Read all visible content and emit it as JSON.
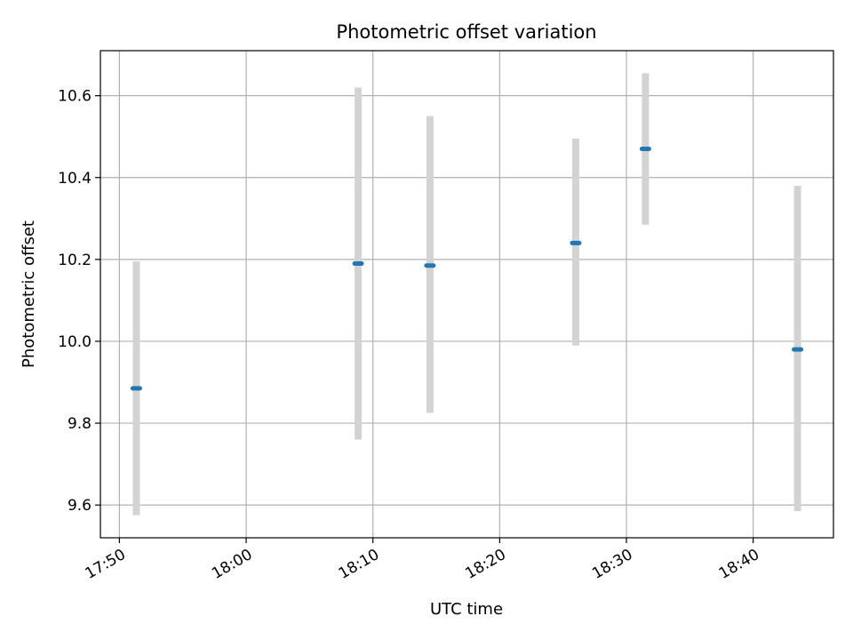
{
  "chart_data": {
    "type": "scatter",
    "title": "Photometric offset variation",
    "xlabel": "UTC time",
    "ylabel": "Photometric offset",
    "x_ticks": [
      "17:50",
      "18:00",
      "18:10",
      "18:20",
      "18:30",
      "18:40"
    ],
    "y_ticks": [
      "9.6",
      "9.8",
      "10.0",
      "10.2",
      "10.4",
      "10.6"
    ],
    "xlim": [
      "17:48:30",
      "18:46:20"
    ],
    "ylim": [
      9.52,
      10.71
    ],
    "grid": true,
    "errorbar_color": "#d3d3d3",
    "marker_color": "#1f77b4",
    "points": [
      {
        "x": "17:51:20",
        "y": 9.885,
        "yerr_low": 9.575,
        "yerr_high": 10.195
      },
      {
        "x": "18:08:50",
        "y": 10.19,
        "yerr_low": 9.76,
        "yerr_high": 10.62
      },
      {
        "x": "18:14:30",
        "y": 10.185,
        "yerr_low": 9.825,
        "yerr_high": 10.55
      },
      {
        "x": "18:26:00",
        "y": 10.24,
        "yerr_low": 9.99,
        "yerr_high": 10.495
      },
      {
        "x": "18:31:30",
        "y": 10.47,
        "yerr_low": 10.285,
        "yerr_high": 10.655
      },
      {
        "x": "18:43:30",
        "y": 9.98,
        "yerr_low": 9.585,
        "yerr_high": 10.38
      }
    ]
  }
}
